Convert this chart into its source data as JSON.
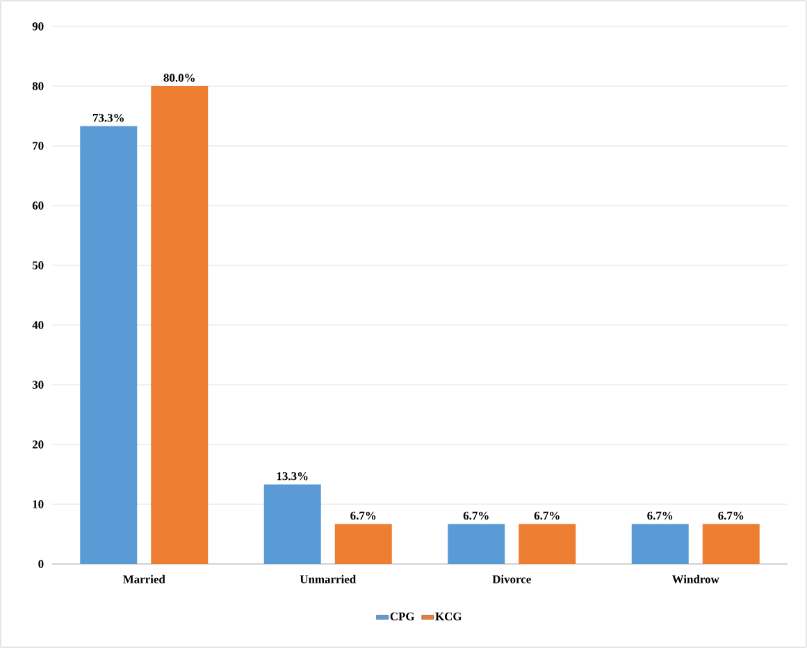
{
  "chart_data": {
    "type": "bar",
    "categories": [
      "Married",
      "Unmarried",
      "Divorce",
      "Windrow"
    ],
    "series": [
      {
        "name": "CPG",
        "color": "#5b9bd5",
        "values": [
          73.3,
          13.3,
          6.7,
          6.7
        ],
        "value_labels": [
          "73.3%",
          "13.3%",
          "6.7%",
          "6.7%"
        ]
      },
      {
        "name": "KCG",
        "color": "#ed7d31",
        "values": [
          80.0,
          6.7,
          6.7,
          6.7
        ],
        "value_labels": [
          "80.0%",
          "6.7%",
          "6.7%",
          "6.7%"
        ]
      }
    ],
    "ylim": [
      0,
      90
    ],
    "yticks": [
      0,
      10,
      20,
      30,
      40,
      50,
      60,
      70,
      80,
      90
    ],
    "grid": "y",
    "legend": "bottom"
  }
}
